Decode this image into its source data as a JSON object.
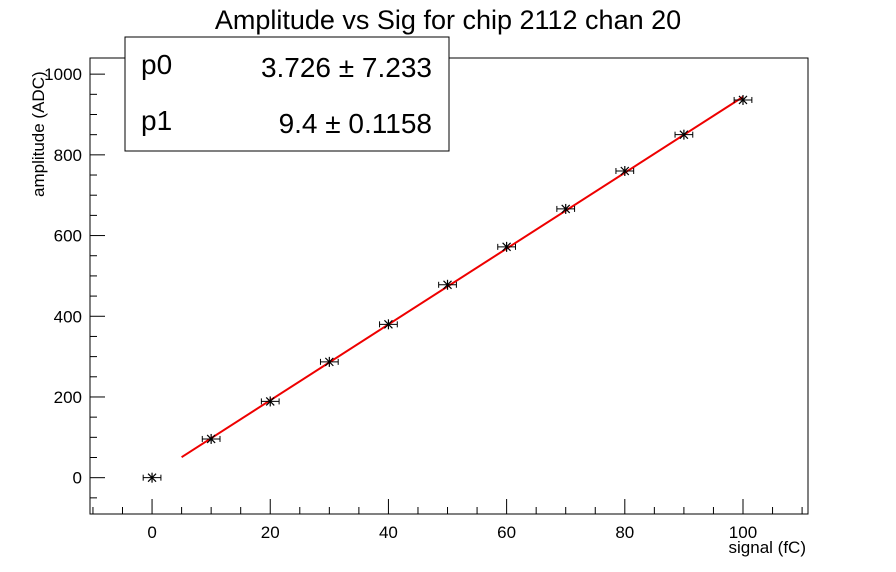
{
  "chart_data": {
    "type": "scatter",
    "title": "Amplitude vs Sig for chip 2112 chan 20",
    "xlabel": "signal (fC)",
    "ylabel": "amplitude (ADC)",
    "xlim": [
      -10.5,
      111
    ],
    "ylim": [
      -90,
      1040
    ],
    "x_ticks": [
      0,
      20,
      40,
      60,
      80,
      100
    ],
    "y_ticks": [
      0,
      200,
      400,
      600,
      800,
      1000
    ],
    "grid": false,
    "legend": "none",
    "points": {
      "x": [
        0,
        10,
        20,
        30,
        40,
        50,
        60,
        70,
        80,
        90,
        100
      ],
      "y": [
        0,
        96,
        189,
        287,
        380,
        478,
        572,
        666,
        760,
        850,
        936
      ],
      "x_err": 1.5,
      "y_err": 3,
      "color": "#000000"
    },
    "fit": {
      "x_range": [
        5,
        100
      ],
      "p0": 3.726,
      "p1": 9.4,
      "color": "#ee0000"
    },
    "stats_box": [
      {
        "name": "p0",
        "value": "3.726 ± 7.233"
      },
      {
        "name": "p1",
        "value": "9.4 ± 0.1158"
      }
    ]
  }
}
